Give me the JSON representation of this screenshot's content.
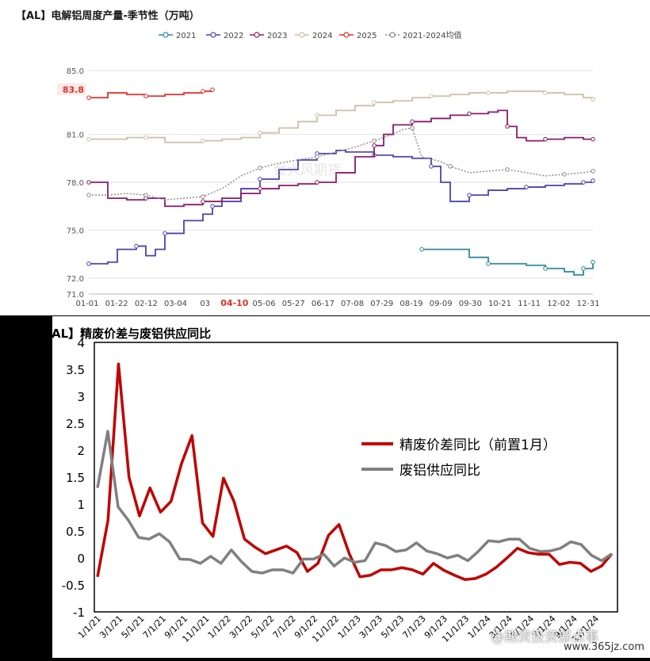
{
  "chart_data": [
    {
      "type": "line",
      "title": "【AL】电解铝周度产量-季节性（万吨）",
      "ylim": [
        71,
        85
      ],
      "yticks": [
        "71.0",
        "72.0",
        "75.0",
        "78.0",
        "81.0",
        "85.0"
      ],
      "xticks": [
        "01-01",
        "01-22",
        "02-12",
        "03-04",
        "03",
        "04-10",
        "05-06",
        "05-27",
        "06-17",
        "07-08",
        "07-29",
        "08-19",
        "09-09",
        "09-30",
        "10-21",
        "11-11",
        "12-02",
        "12-31"
      ],
      "highlight_label": "83.8",
      "grid": true,
      "legend_position": "top",
      "series": [
        {
          "name": "2021",
          "color": "#2e8b9a",
          "dashed": false,
          "points": [
            [
              35,
              73.8
            ],
            [
              38,
              73.8
            ],
            [
              40,
              73.3
            ],
            [
              42,
              72.9
            ],
            [
              44,
              72.9
            ],
            [
              46,
              72.8
            ],
            [
              48,
              72.6
            ],
            [
              50,
              72.4
            ],
            [
              51,
              72.2
            ],
            [
              52,
              72.6
            ],
            [
              53,
              73.0
            ]
          ]
        },
        {
          "name": "2022",
          "color": "#4b43b0",
          "dashed": false,
          "points": [
            [
              0,
              72.9
            ],
            [
              2,
              73.0
            ],
            [
              3,
              73.8
            ],
            [
              5,
              74.0
            ],
            [
              6,
              73.4
            ],
            [
              7,
              73.8
            ],
            [
              8,
              74.8
            ],
            [
              10,
              75.6
            ],
            [
              12,
              76.0
            ],
            [
              13,
              76.5
            ],
            [
              14,
              76.8
            ],
            [
              16,
              77.6
            ],
            [
              18,
              78.2
            ],
            [
              20,
              78.8
            ],
            [
              22,
              79.4
            ],
            [
              24,
              79.8
            ],
            [
              26,
              80.0
            ],
            [
              27,
              79.9
            ],
            [
              30,
              79.7
            ],
            [
              32,
              79.6
            ],
            [
              34,
              79.5
            ],
            [
              36,
              79.0
            ],
            [
              37,
              78.0
            ],
            [
              38,
              76.8
            ],
            [
              40,
              77.2
            ],
            [
              42,
              77.5
            ],
            [
              44,
              77.6
            ],
            [
              46,
              77.7
            ],
            [
              48,
              77.8
            ],
            [
              50,
              77.9
            ],
            [
              52,
              78.0
            ],
            [
              53,
              78.1
            ]
          ]
        },
        {
          "name": "2023",
          "color": "#8b1a6b",
          "dashed": false,
          "points": [
            [
              0,
              78.0
            ],
            [
              2,
              77.0
            ],
            [
              4,
              76.9
            ],
            [
              6,
              77.0
            ],
            [
              8,
              76.5
            ],
            [
              10,
              76.6
            ],
            [
              12,
              76.8
            ],
            [
              14,
              77.0
            ],
            [
              16,
              77.3
            ],
            [
              18,
              77.6
            ],
            [
              20,
              77.8
            ],
            [
              22,
              77.9
            ],
            [
              24,
              78.0
            ],
            [
              26,
              78.6
            ],
            [
              28,
              79.6
            ],
            [
              30,
              80.3
            ],
            [
              31,
              81.0
            ],
            [
              32,
              81.6
            ],
            [
              34,
              81.8
            ],
            [
              36,
              82.0
            ],
            [
              38,
              82.2
            ],
            [
              40,
              82.3
            ],
            [
              42,
              82.4
            ],
            [
              43,
              82.5
            ],
            [
              44,
              81.5
            ],
            [
              45,
              80.8
            ],
            [
              46,
              80.6
            ],
            [
              48,
              80.7
            ],
            [
              50,
              80.8
            ],
            [
              52,
              80.7
            ],
            [
              53,
              80.7
            ]
          ]
        },
        {
          "name": "2024",
          "color": "#cdbfa8",
          "dashed": false,
          "points": [
            [
              0,
              80.7
            ],
            [
              2,
              80.7
            ],
            [
              4,
              80.8
            ],
            [
              6,
              80.8
            ],
            [
              8,
              80.5
            ],
            [
              10,
              80.5
            ],
            [
              12,
              80.6
            ],
            [
              14,
              80.7
            ],
            [
              16,
              80.8
            ],
            [
              18,
              81.1
            ],
            [
              20,
              81.4
            ],
            [
              22,
              81.8
            ],
            [
              24,
              82.2
            ],
            [
              26,
              82.5
            ],
            [
              28,
              82.8
            ],
            [
              30,
              83.0
            ],
            [
              32,
              83.1
            ],
            [
              34,
              83.3
            ],
            [
              36,
              83.4
            ],
            [
              38,
              83.5
            ],
            [
              40,
              83.6
            ],
            [
              42,
              83.6
            ],
            [
              44,
              83.7
            ],
            [
              46,
              83.7
            ],
            [
              48,
              83.6
            ],
            [
              50,
              83.5
            ],
            [
              52,
              83.3
            ],
            [
              53,
              83.2
            ]
          ]
        },
        {
          "name": "2025",
          "color": "#e0302c",
          "dashed": false,
          "points": [
            [
              0,
              83.3
            ],
            [
              2,
              83.6
            ],
            [
              4,
              83.5
            ],
            [
              6,
              83.4
            ],
            [
              8,
              83.5
            ],
            [
              10,
              83.6
            ],
            [
              12,
              83.7
            ],
            [
              13,
              83.8
            ]
          ]
        },
        {
          "name": "2021-2024均值",
          "color": "#8a8a8a",
          "dashed": true,
          "points": [
            [
              0,
              77.2
            ],
            [
              2,
              77.2
            ],
            [
              4,
              77.3
            ],
            [
              6,
              77.2
            ],
            [
              8,
              76.9
            ],
            [
              10,
              77.0
            ],
            [
              12,
              77.1
            ],
            [
              14,
              77.6
            ],
            [
              16,
              78.4
            ],
            [
              18,
              78.9
            ],
            [
              20,
              79.2
            ],
            [
              22,
              79.4
            ],
            [
              24,
              79.6
            ],
            [
              26,
              79.9
            ],
            [
              28,
              80.2
            ],
            [
              30,
              80.6
            ],
            [
              32,
              81.0
            ],
            [
              33,
              81.3
            ],
            [
              34,
              81.4
            ],
            [
              35,
              79.6
            ],
            [
              37,
              79.3
            ],
            [
              38,
              79.0
            ],
            [
              40,
              78.6
            ],
            [
              42,
              78.7
            ],
            [
              44,
              78.8
            ],
            [
              46,
              78.6
            ],
            [
              48,
              78.4
            ],
            [
              50,
              78.5
            ],
            [
              52,
              78.6
            ],
            [
              53,
              78.7
            ]
          ]
        }
      ]
    },
    {
      "type": "line",
      "title": "【AL】精废价差与废铝供应同比",
      "ylim": [
        -1,
        4
      ],
      "yticks": [
        "-1",
        "-0.5",
        "0",
        "0.5",
        "1",
        "1.5",
        "2",
        "2.5",
        "3",
        "3.5",
        "4"
      ],
      "xticks": [
        "1/1/21",
        "3/1/21",
        "5/1/21",
        "7/1/21",
        "9/1/21",
        "11/1/21",
        "1/1/22",
        "3/1/22",
        "5/1/22",
        "7/1/22",
        "9/1/22",
        "11/1/22",
        "1/1/23",
        "3/1/23",
        "5/1/23",
        "7/1/23",
        "9/1/23",
        "11/1/23",
        "1/1/24",
        "3/1/24",
        "5/1/24",
        "7/1/24",
        "9/1/24",
        "11/1/24"
      ],
      "legend_position": "right",
      "series": [
        {
          "name": "精废价差同比（前置1月）",
          "color": "#c00000",
          "values": [
            -0.35,
            0.7,
            3.6,
            1.5,
            0.78,
            1.3,
            0.85,
            1.05,
            1.75,
            2.27,
            0.65,
            0.4,
            1.48,
            1.05,
            0.35,
            0.2,
            0.08,
            0.15,
            0.22,
            0.1,
            -0.25,
            -0.1,
            0.42,
            0.62,
            0.07,
            -0.35,
            -0.32,
            -0.22,
            -0.22,
            -0.18,
            -0.22,
            -0.3,
            -0.1,
            -0.23,
            -0.32,
            -0.4,
            -0.38,
            -0.3,
            -0.17,
            0.0,
            0.18,
            0.1,
            0.07,
            0.07,
            -0.12,
            -0.08,
            -0.1,
            -0.25,
            -0.15,
            0.08
          ]
        },
        {
          "name": "废铝供应同比",
          "color": "#808080",
          "values": [
            1.3,
            2.35,
            0.95,
            0.7,
            0.38,
            0.35,
            0.45,
            0.3,
            -0.02,
            -0.03,
            -0.1,
            0.03,
            -0.1,
            0.15,
            -0.07,
            -0.25,
            -0.28,
            -0.22,
            -0.22,
            -0.28,
            -0.02,
            -0.02,
            0.07,
            -0.15,
            0.0,
            -0.08,
            -0.05,
            0.28,
            0.23,
            0.12,
            0.15,
            0.28,
            0.13,
            0.08,
            0.0,
            0.05,
            -0.05,
            0.12,
            0.32,
            0.3,
            0.35,
            0.35,
            0.18,
            0.12,
            0.13,
            0.18,
            0.3,
            0.25,
            0.05,
            -0.05,
            0.08
          ]
        }
      ]
    }
  ],
  "watermarks": {
    "top": "金大风期货",
    "bottom": "@期货投资部点事",
    "site": "www.365jz.com"
  }
}
